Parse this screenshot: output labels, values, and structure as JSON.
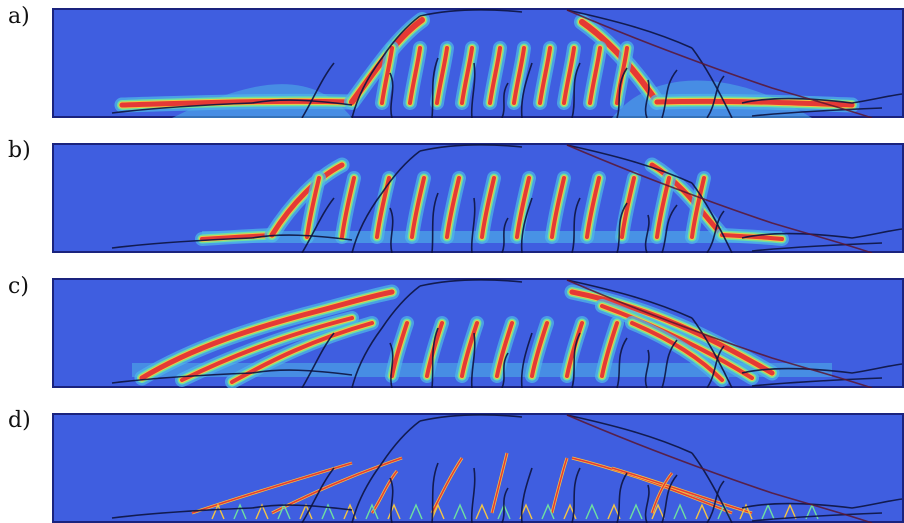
{
  "panels": [
    {
      "label": "a)",
      "variant": "a"
    },
    {
      "label": "b)",
      "variant": "b"
    },
    {
      "label": "c)",
      "variant": "c"
    },
    {
      "label": "d)",
      "variant": "d"
    }
  ],
  "colors": {
    "background_field": "#3f5ee0",
    "border": "#1a237e",
    "damage_high": "#e53935",
    "damage_mid": "#f4c542",
    "damage_low": "#6fe0a0",
    "damage_faint": "#4fb5e8",
    "experimental_crack": "#0d1440",
    "experimental_crack_alt": "#5a1530"
  }
}
